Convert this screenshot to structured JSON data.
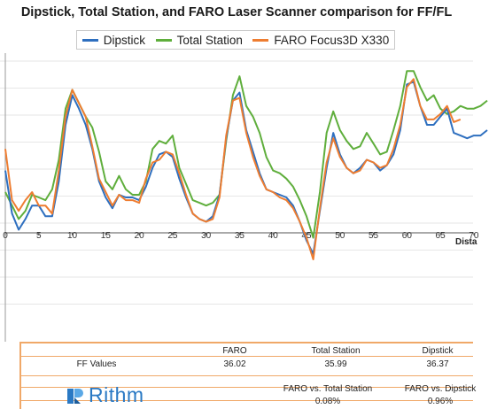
{
  "chart_data": {
    "type": "line",
    "title": "Dipstick, Total Station, and FARO Laser Scanner comparison for FF/FL",
    "xlabel": "Dista",
    "xlim": [
      0,
      72
    ],
    "ylim": [
      0,
      10
    ],
    "x_ticks": [
      0,
      5,
      10,
      15,
      20,
      25,
      30,
      35,
      40,
      45,
      50,
      55,
      60,
      65,
      70
    ],
    "legend_position": "top",
    "grid": false,
    "x": [
      0,
      1,
      2,
      3,
      4,
      5,
      6,
      7,
      8,
      9,
      10,
      11,
      12,
      13,
      14,
      15,
      16,
      17,
      18,
      19,
      20,
      21,
      22,
      23,
      24,
      25,
      26,
      27,
      28,
      29,
      30,
      31,
      32,
      33,
      34,
      35,
      36,
      37,
      38,
      39,
      40,
      41,
      42,
      43,
      44,
      45,
      46,
      47,
      48,
      49,
      50,
      51,
      52,
      53,
      54,
      55,
      56,
      57,
      58,
      59,
      60,
      61,
      62,
      63,
      64,
      65,
      66,
      67,
      68,
      69,
      70,
      71,
      72
    ],
    "series": [
      {
        "name": "Dipstick",
        "color": "#2e6fbf",
        "values": [
          5.9,
          4.3,
          3.7,
          4.1,
          4.6,
          4.6,
          4.2,
          4.2,
          5.5,
          7.6,
          8.7,
          8.2,
          7.6,
          6.7,
          5.5,
          4.9,
          4.5,
          5.0,
          4.9,
          4.9,
          4.8,
          5.3,
          6.0,
          6.5,
          6.6,
          6.4,
          5.6,
          4.9,
          4.3,
          4.1,
          4.0,
          4.2,
          5.0,
          7.1,
          8.5,
          8.8,
          7.4,
          6.6,
          5.8,
          5.2,
          5.1,
          5.0,
          4.9,
          4.6,
          4.0,
          3.3,
          2.8,
          4.4,
          6.0,
          7.3,
          6.5,
          6.0,
          5.8,
          6.0,
          6.3,
          6.2,
          5.9,
          6.1,
          6.5,
          7.4,
          9.1,
          9.2,
          8.3,
          7.6,
          7.6,
          7.9,
          8.2,
          7.3,
          7.2,
          7.1,
          7.2,
          7.2,
          7.4
        ]
      },
      {
        "name": "Total Station",
        "color": "#5fae3c",
        "values": [
          5.1,
          4.6,
          4.1,
          4.4,
          5.0,
          4.9,
          4.8,
          5.2,
          6.3,
          8.2,
          8.9,
          8.4,
          7.9,
          7.5,
          6.6,
          5.5,
          5.2,
          5.7,
          5.2,
          5.0,
          5.0,
          5.5,
          6.7,
          7.0,
          6.9,
          7.2,
          6.0,
          5.4,
          4.8,
          4.7,
          4.6,
          4.7,
          5.0,
          7.0,
          8.7,
          9.4,
          8.3,
          7.9,
          7.3,
          6.4,
          5.9,
          5.8,
          5.6,
          5.3,
          4.8,
          4.2,
          3.4,
          5.1,
          7.3,
          8.1,
          7.4,
          7.0,
          6.7,
          6.8,
          7.3,
          6.9,
          6.5,
          6.6,
          7.4,
          8.3,
          9.6,
          9.6,
          9.0,
          8.5,
          8.7,
          8.2,
          8.0,
          8.1,
          8.3,
          8.2,
          8.2,
          8.3,
          8.5
        ]
      },
      {
        "name": "FARO Focus3D X330",
        "color": "#ee7d31",
        "values": [
          6.7,
          4.8,
          4.4,
          4.8,
          5.1,
          4.6,
          4.6,
          4.3,
          5.9,
          7.9,
          8.9,
          8.4,
          7.9,
          6.8,
          5.6,
          5.1,
          4.6,
          5.0,
          4.8,
          4.8,
          4.7,
          5.6,
          6.2,
          6.3,
          6.6,
          6.5,
          5.8,
          5.0,
          4.3,
          4.1,
          4.0,
          4.1,
          4.9,
          7.2,
          8.5,
          8.6,
          7.3,
          6.4,
          5.7,
          5.2,
          5.1,
          4.9,
          4.8,
          4.5,
          4.0,
          3.4,
          2.6,
          4.5,
          6.2,
          7.1,
          6.4,
          6.0,
          5.8,
          5.9,
          6.3,
          6.2,
          6.0,
          6.1,
          6.7,
          7.6,
          9.0,
          9.3,
          8.3,
          7.8,
          7.8,
          8.0,
          8.3,
          7.7,
          7.8,
          null,
          null,
          null,
          null
        ]
      }
    ]
  },
  "table": {
    "col_headers": [
      "FARO",
      "Total Station",
      "Dipstick"
    ],
    "row_label": "FF Values",
    "row_values": [
      "36.02",
      "35.99",
      "36.37"
    ],
    "compare_headers": [
      "FARO vs. Total Station",
      "FARO vs. Dipstick"
    ],
    "compare_values": [
      "0.08%",
      "0.96%"
    ]
  },
  "brand": {
    "name": "Rithm",
    "color": "#2a79c4"
  }
}
